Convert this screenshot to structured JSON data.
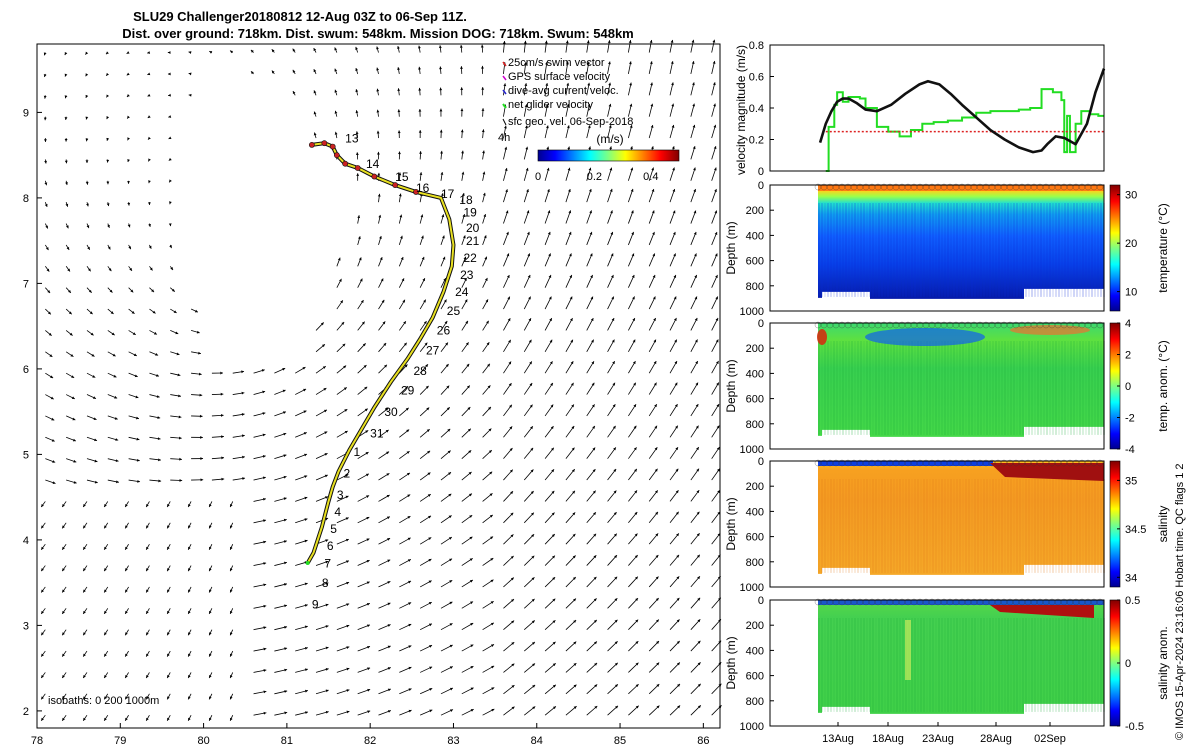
{
  "title": {
    "line1": "SLU29 Challenger20180812 12-Aug 03Z to 06-Sep 11Z.",
    "line2": "Dist. over ground: 718km. Dist. swum: 548km. Mission DOG: 718km. Swum: 548km"
  },
  "side_label": "© IMOS 15-Apr-2024 23:16:06 Hobart time. QC flags 1  2",
  "chart_data": [
    {
      "id": "map",
      "type": "scatter",
      "title": "Glider track with surface geostrophic velocity vectors",
      "xlim": [
        78,
        86.2
      ],
      "ylim": [
        1.8,
        9.8
      ],
      "xticks": [
        "78",
        "79",
        "80",
        "81",
        "82",
        "83",
        "84",
        "85",
        "86"
      ],
      "yticks": [
        "2",
        "3",
        "4",
        "5",
        "6",
        "7",
        "8",
        "9"
      ],
      "legend": {
        "placement": "top-right",
        "entries": [
          "25cm/s swim vector",
          "GPS surface velocity",
          "dive-avg current veloc.",
          "net glider velocity",
          "sfc geo. vel. 06-Sep-2018"
        ],
        "vector_label": "4h"
      },
      "colorbar": {
        "label": "(m/s)",
        "ticks": [
          "0",
          "0.2",
          "0.4"
        ],
        "range": [
          0,
          0.5
        ]
      },
      "isobaths_label": "isobaths: 0   200  1000m",
      "track": [
        [
          81.25,
          3.73
        ],
        [
          81.32,
          3.85
        ],
        [
          81.42,
          4.15
        ],
        [
          81.5,
          4.45
        ],
        [
          81.55,
          4.62
        ],
        [
          81.62,
          4.8
        ],
        [
          81.75,
          5.05
        ],
        [
          81.9,
          5.3
        ],
        [
          82.05,
          5.55
        ],
        [
          82.25,
          5.85
        ],
        [
          82.45,
          6.12
        ],
        [
          82.6,
          6.35
        ],
        [
          82.75,
          6.6
        ],
        [
          82.88,
          6.9
        ],
        [
          82.98,
          7.2
        ],
        [
          83.0,
          7.45
        ],
        [
          82.95,
          7.75
        ],
        [
          82.85,
          8.0
        ],
        [
          82.55,
          8.07
        ],
        [
          82.3,
          8.15
        ],
        [
          82.05,
          8.25
        ],
        [
          81.85,
          8.35
        ],
        [
          81.7,
          8.4
        ],
        [
          81.6,
          8.5
        ],
        [
          81.55,
          8.6
        ],
        [
          81.45,
          8.64
        ],
        [
          81.3,
          8.62
        ]
      ],
      "day_labels": [
        {
          "t": "13",
          "x": 81.7,
          "y": 8.65
        },
        {
          "t": "14",
          "x": 81.95,
          "y": 8.35
        },
        {
          "t": "15",
          "x": 82.3,
          "y": 8.2
        },
        {
          "t": "16",
          "x": 82.55,
          "y": 8.07
        },
        {
          "t": "17",
          "x": 82.85,
          "y": 8.0
        },
        {
          "t": "18",
          "x": 83.07,
          "y": 7.93
        },
        {
          "t": "19",
          "x": 83.12,
          "y": 7.78
        },
        {
          "t": "20",
          "x": 83.15,
          "y": 7.6
        },
        {
          "t": "21",
          "x": 83.15,
          "y": 7.45
        },
        {
          "t": "22",
          "x": 83.12,
          "y": 7.25
        },
        {
          "t": "23",
          "x": 83.08,
          "y": 7.05
        },
        {
          "t": "24",
          "x": 83.02,
          "y": 6.85
        },
        {
          "t": "25",
          "x": 82.92,
          "y": 6.63
        },
        {
          "t": "26",
          "x": 82.8,
          "y": 6.4
        },
        {
          "t": "27",
          "x": 82.67,
          "y": 6.17
        },
        {
          "t": "28",
          "x": 82.52,
          "y": 5.93
        },
        {
          "t": "29",
          "x": 82.37,
          "y": 5.7
        },
        {
          "t": "30",
          "x": 82.17,
          "y": 5.45
        },
        {
          "t": "31",
          "x": 82.0,
          "y": 5.2
        },
        {
          "t": "1",
          "x": 81.8,
          "y": 4.98
        },
        {
          "t": "2",
          "x": 81.68,
          "y": 4.73
        },
        {
          "t": "3",
          "x": 81.6,
          "y": 4.48
        },
        {
          "t": "4",
          "x": 81.57,
          "y": 4.28
        },
        {
          "t": "5",
          "x": 81.52,
          "y": 4.08
        },
        {
          "t": "6",
          "x": 81.48,
          "y": 3.88
        },
        {
          "t": "7",
          "x": 81.45,
          "y": 3.68
        },
        {
          "t": "8",
          "x": 81.42,
          "y": 3.45
        },
        {
          "t": "9",
          "x": 81.3,
          "y": 3.2
        }
      ]
    },
    {
      "id": "velocity",
      "type": "line",
      "ylabel": "velocity magnitude (m/s)",
      "xlim": [
        0,
        1
      ],
      "ylim": [
        0,
        0.8
      ],
      "yticks": [
        "0",
        "0.2",
        "0.4",
        "0.6",
        "0.8"
      ],
      "series": [
        {
          "name": "net glider velocity",
          "color": "#22dd22",
          "x": [
            0.02,
            0.03,
            0.05,
            0.06,
            0.08,
            0.1,
            0.12,
            0.14,
            0.16,
            0.2,
            0.24,
            0.28,
            0.32,
            0.36,
            0.4,
            0.45,
            0.5,
            0.55,
            0.6,
            0.65,
            0.7,
            0.74,
            0.78,
            0.8,
            0.82,
            0.85,
            0.86,
            0.87,
            0.88,
            0.9,
            0.92,
            0.95,
            0.98,
            1.0
          ],
          "values": [
            0.0,
            0.28,
            0.42,
            0.5,
            0.44,
            0.47,
            0.47,
            0.46,
            0.4,
            0.28,
            0.25,
            0.22,
            0.26,
            0.3,
            0.31,
            0.32,
            0.34,
            0.37,
            0.38,
            0.38,
            0.39,
            0.4,
            0.52,
            0.52,
            0.5,
            0.45,
            0.12,
            0.35,
            0.12,
            0.3,
            0.38,
            0.36,
            0.35,
            0.35
          ]
        },
        {
          "name": "25cm/s swim vector",
          "color": "#dd2222",
          "x": [
            0.02,
            0.06,
            0.1,
            0.2,
            0.4,
            0.6,
            0.8,
            1.0
          ],
          "values": [
            0.25,
            0.25,
            0.25,
            0.25,
            0.25,
            0.25,
            0.25,
            0.25
          ]
        },
        {
          "name": "dive-avg current veloc.",
          "color": "#111111",
          "x": [
            0.0,
            0.02,
            0.04,
            0.06,
            0.08,
            0.1,
            0.13,
            0.16,
            0.2,
            0.25,
            0.3,
            0.35,
            0.38,
            0.42,
            0.46,
            0.5,
            0.55,
            0.6,
            0.65,
            0.7,
            0.75,
            0.78,
            0.8,
            0.83,
            0.86,
            0.9,
            0.94,
            0.97,
            1.0
          ],
          "values": [
            0.18,
            0.3,
            0.38,
            0.44,
            0.46,
            0.46,
            0.43,
            0.39,
            0.38,
            0.42,
            0.49,
            0.55,
            0.57,
            0.55,
            0.49,
            0.42,
            0.34,
            0.26,
            0.2,
            0.15,
            0.12,
            0.13,
            0.17,
            0.22,
            0.21,
            0.17,
            0.3,
            0.5,
            0.65
          ]
        }
      ]
    },
    {
      "id": "temperature",
      "type": "heatmap",
      "ylabel": "Depth (m)",
      "colorbar_label": "temperature (°C)",
      "ylim": [
        0,
        1000
      ],
      "yticks": [
        "0",
        "200",
        "400",
        "600",
        "800",
        "1000"
      ],
      "colorbar_ticks": [
        "30",
        "20",
        "10"
      ],
      "colorbar_range": [
        6,
        32
      ],
      "bottom_depth": 920
    },
    {
      "id": "temp_anomaly",
      "type": "heatmap",
      "ylabel": "Depth (m)",
      "colorbar_label": "temp. anom. (°C)",
      "ylim": [
        0,
        1000
      ],
      "yticks": [
        "0",
        "200",
        "400",
        "600",
        "800",
        "1000"
      ],
      "colorbar_ticks": [
        "4",
        "2",
        "0",
        "-2",
        "-4"
      ],
      "colorbar_range": [
        -4,
        4
      ],
      "bottom_depth": 920
    },
    {
      "id": "salinity",
      "type": "heatmap",
      "ylabel": "Depth (m)",
      "colorbar_label": "salinity",
      "ylim": [
        0,
        1000
      ],
      "yticks": [
        "0",
        "200",
        "400",
        "600",
        "800",
        "1000"
      ],
      "colorbar_ticks": [
        "35",
        "34.5",
        "34"
      ],
      "colorbar_range": [
        33.9,
        35.2
      ],
      "bottom_depth": 920
    },
    {
      "id": "sal_anomaly",
      "type": "heatmap",
      "ylabel": "Depth (m)",
      "colorbar_label": "salinity anom.",
      "ylim": [
        0,
        1000
      ],
      "yticks": [
        "0",
        "200",
        "400",
        "600",
        "800",
        "1000"
      ],
      "xticks": [
        "13Aug",
        "18Aug",
        "23Aug",
        "28Aug",
        "02Sep"
      ],
      "colorbar_ticks": [
        "0.5",
        "0",
        "-0.5"
      ],
      "colorbar_range": [
        -0.5,
        0.5
      ],
      "bottom_depth": 920
    }
  ]
}
